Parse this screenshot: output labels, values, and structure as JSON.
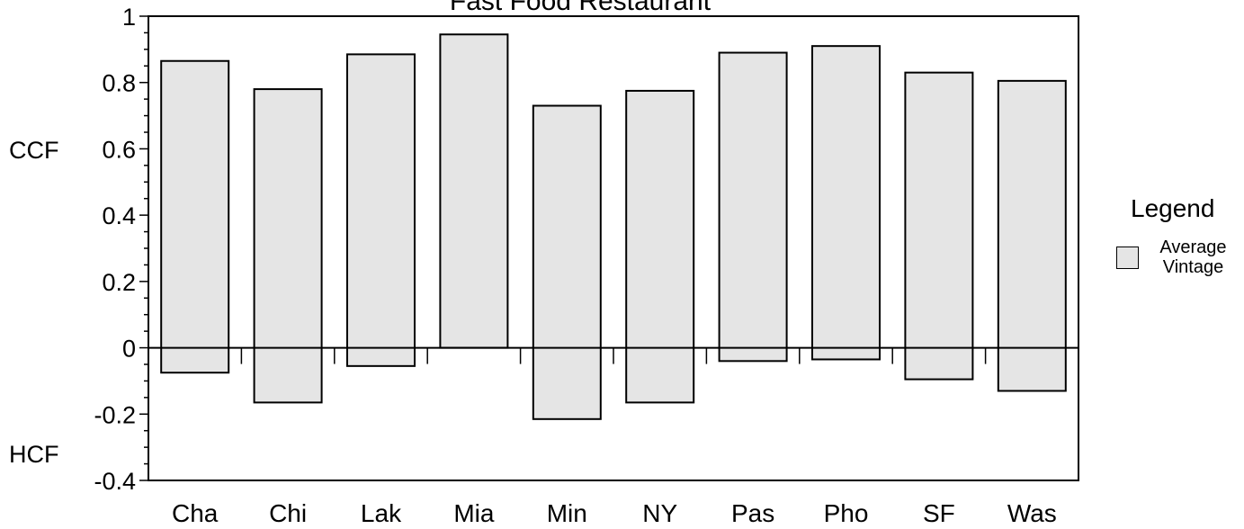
{
  "chart_data": {
    "type": "bar",
    "title": "Fast Food Restaurant",
    "categories": [
      "Cha",
      "Chi",
      "Lak",
      "Mia",
      "Min",
      "NY",
      "Pas",
      "Pho",
      "SF",
      "Was"
    ],
    "series": [
      {
        "name": "Average Vintage",
        "upper": [
          0.865,
          0.78,
          0.885,
          0.945,
          0.73,
          0.775,
          0.89,
          0.91,
          0.83,
          0.805
        ],
        "lower": [
          -0.075,
          -0.165,
          -0.055,
          0.0,
          -0.215,
          -0.165,
          -0.04,
          -0.035,
          -0.095,
          -0.13
        ]
      }
    ],
    "ylim": [
      -0.4,
      1
    ],
    "yticks": [
      "-0.4",
      "-0.2",
      "0",
      "0.2",
      "0.4",
      "0.6",
      "0.8",
      "1"
    ],
    "top_label": "CCF",
    "bottom_label": "HCF",
    "legend": {
      "title": "Legend",
      "label": "Average Vintage",
      "position": "right"
    },
    "colors": {
      "bar_fill": "#e5e5e5",
      "stroke": "#000000"
    }
  }
}
